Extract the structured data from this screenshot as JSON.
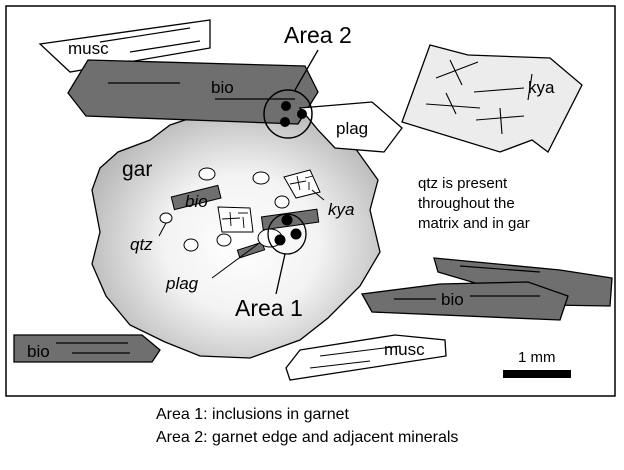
{
  "labels": {
    "area2": "Area 2",
    "area1": "Area 1",
    "gar": "gar",
    "musc_top": "musc",
    "musc_bottom": "musc",
    "bio_top": "bio",
    "bio_inclusion": "bio",
    "bio_right": "bio",
    "bio_left": "bio",
    "kya_matrix": "kya",
    "kya_inclusion": "kya",
    "plag_matrix": "plag",
    "plag_inclusion": "plag",
    "qtz": "qtz",
    "note_line1": "qtz is present",
    "note_line2": "throughout the",
    "note_line3": "matrix and in gar"
  },
  "scale_bar": {
    "label": "1 mm"
  },
  "caption": {
    "line1": "Area 1: inclusions in garnet",
    "line2": "Area 2: garnet edge and adjacent minerals"
  },
  "colors": {
    "biotite": "#6f6f6f",
    "garnet_center": "#ffffff",
    "garnet_edge": "#b4b4b4",
    "kyanite": "#ececec",
    "outline": "#000000"
  }
}
